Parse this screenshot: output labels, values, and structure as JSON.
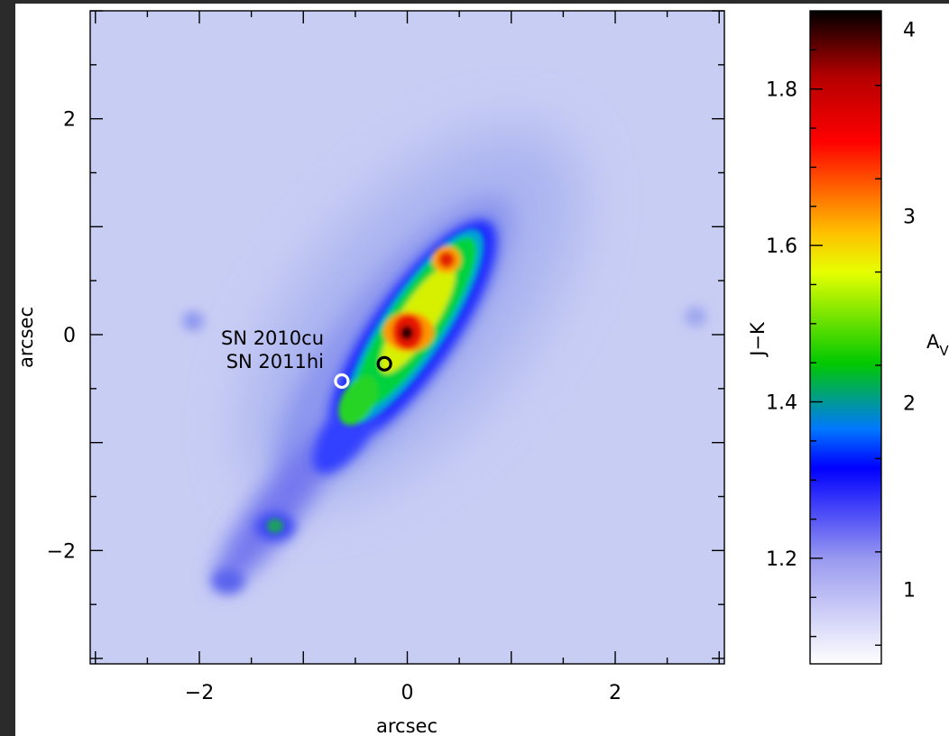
{
  "chart_data": {
    "type": "heatmap",
    "xlabel": "arcsec",
    "ylabel": "arcsec",
    "xlim": [
      -3.05,
      3.05
    ],
    "ylim": [
      -3.05,
      3.0
    ],
    "x_ticks": [
      -2,
      0,
      2
    ],
    "y_ticks": [
      -2,
      0,
      2
    ],
    "x_tick_labels": [
      "−2",
      "0",
      "2"
    ],
    "y_tick_labels": [
      "−2",
      "0",
      "2"
    ],
    "colorbar": {
      "left_label": "J−K",
      "left_lim": [
        1.065,
        1.9
      ],
      "left_ticks": [
        1.2,
        1.4,
        1.6,
        1.8
      ],
      "left_tick_labels": [
        "1.2",
        "1.4",
        "1.6",
        "1.8"
      ],
      "right_label": "A",
      "right_label_sub": "V",
      "right_lim": [
        0.6,
        4.1
      ],
      "right_ticks": [
        1,
        2,
        3,
        4
      ],
      "right_tick_labels": [
        "1",
        "2",
        "3",
        "4"
      ],
      "colormap": [
        "#ffffff",
        "#9a9af0",
        "#0000ff",
        "#00ff00",
        "#ffff00",
        "#ff0000",
        "#000000"
      ]
    },
    "annotations": [
      {
        "label": "SN 2010cu",
        "x": -0.22,
        "y": -0.27,
        "marker_color": "#000000"
      },
      {
        "label": "SN 2011hi",
        "x": -0.63,
        "y": -0.43,
        "marker_color": "#ffffff"
      }
    ],
    "features": [
      {
        "x": 0.0,
        "y": 0.0,
        "value": 1.9
      },
      {
        "x": 0.37,
        "y": 0.7,
        "value": 1.73
      },
      {
        "x": -1.27,
        "y": -1.77,
        "value": 1.4
      },
      {
        "x": -1.72,
        "y": -2.27,
        "value": 1.22
      },
      {
        "x": -2.07,
        "y": 0.15,
        "value": 1.14
      },
      {
        "x": 2.77,
        "y": 0.2,
        "value": 1.13
      }
    ]
  }
}
